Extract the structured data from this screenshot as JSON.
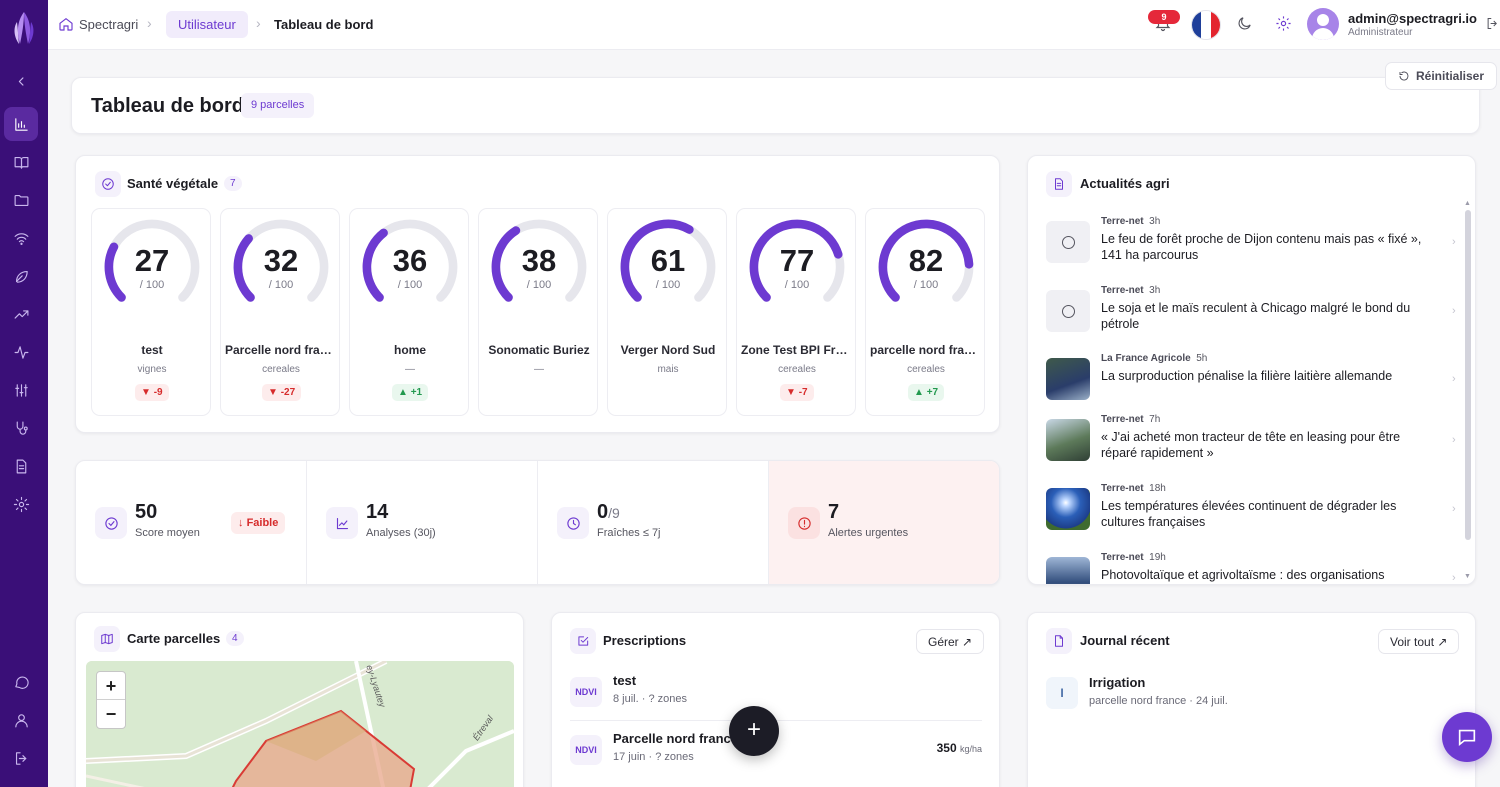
{
  "breadcrumb": {
    "home_label": "Spectragri",
    "section_label": "Utilisateur",
    "current_label": "Tableau de bord"
  },
  "topbar": {
    "notifications_count": "9",
    "user_email": "admin@spectragri.io",
    "user_role": "Administrateur",
    "language_flag": "fr-flag-icon"
  },
  "colors": {
    "accent": "#6d3ad1",
    "sidebar": "#3a0f78",
    "danger": "#d62c2c",
    "success": "#23994f",
    "gauge_track": "#e6e6ec"
  },
  "header": {
    "title": "Tableau de bord",
    "parcels_badge": "9 parcelles",
    "reset_label": "Réinitialiser"
  },
  "health": {
    "title": "Santé végétale",
    "count": "7",
    "max_label": "/ 100",
    "parcels": [
      {
        "score": 27,
        "name": "test",
        "crop": "vignes",
        "delta": "-9",
        "trend": "down"
      },
      {
        "score": 32,
        "name": "Parcelle nord france",
        "crop": "cereales",
        "delta": "-27",
        "trend": "down"
      },
      {
        "score": 36,
        "name": "home",
        "crop": "—",
        "delta": "+1",
        "trend": "up"
      },
      {
        "score": 38,
        "name": "Sonomatic Buriez",
        "crop": "—",
        "delta": "",
        "trend": "none"
      },
      {
        "score": 61,
        "name": "Verger Nord Sud",
        "crop": "mais",
        "delta": "",
        "trend": "none"
      },
      {
        "score": 77,
        "name": "Zone Test BPI France",
        "crop": "cereales",
        "delta": "-7",
        "trend": "down"
      },
      {
        "score": 82,
        "name": "parcelle nord france",
        "crop": "cereales",
        "delta": "+7",
        "trend": "up"
      }
    ]
  },
  "kpis": {
    "score": {
      "value": "50",
      "label": "Score moyen",
      "badge": "Faible"
    },
    "analyses": {
      "value": "14",
      "label": "Analyses (30j)"
    },
    "fresh": {
      "value": "0",
      "suffix": "/9",
      "label": "Fraîches ≤ 7j"
    },
    "alerts": {
      "value": "7",
      "label": "Alertes urgentes"
    }
  },
  "news": {
    "title": "Actualités agri",
    "items": [
      {
        "source": "Terre-net",
        "age": "3h",
        "title": "Le feu de forêt proche de Dijon contenu mais pas « fixé », 141 ha parcourus",
        "thumb": "placeholder"
      },
      {
        "source": "Terre-net",
        "age": "3h",
        "title": "Le soja et le maïs reculent à Chicago malgré le bond du pétrole",
        "thumb": "placeholder"
      },
      {
        "source": "La France Agricole",
        "age": "5h",
        "title": "La surproduction pénalise la filière laitière allemande",
        "thumb": "dairy-photo"
      },
      {
        "source": "Terre-net",
        "age": "7h",
        "title": "« J'ai acheté mon tracteur de tête en leasing pour être réparé rapidement »",
        "thumb": "tractor-photo"
      },
      {
        "source": "Terre-net",
        "age": "18h",
        "title": "Les températures élevées continuent de dégrader les cultures françaises",
        "thumb": "sun-field-photo"
      },
      {
        "source": "Terre-net",
        "age": "19h",
        "title": "Photovoltaïque et agrivoltaïsme : des organisations",
        "thumb": "solar-photo"
      }
    ]
  },
  "map": {
    "title": "Carte parcelles",
    "count": "4",
    "zoom_in": "+",
    "zoom_out": "−",
    "road_label_1": "ey-Lyautey",
    "road_label_2": "Étreval"
  },
  "prescriptions": {
    "title": "Prescriptions",
    "manage_label": "Gérer ↗",
    "items": [
      {
        "type": "NDVI",
        "name": "test",
        "meta": "8 juil. · ? zones",
        "dose": "",
        "unit": ""
      },
      {
        "type": "NDVI",
        "name": "Parcelle nord france",
        "meta": "17 juin · ? zones",
        "dose": "350",
        "unit": "kg/ha"
      }
    ],
    "fab_label": "+"
  },
  "journal": {
    "title": "Journal récent",
    "view_all_label": "Voir tout ↗",
    "items": [
      {
        "initial": "I",
        "name": "Irrigation",
        "meta": "parcelle nord france · 24 juil."
      }
    ]
  }
}
